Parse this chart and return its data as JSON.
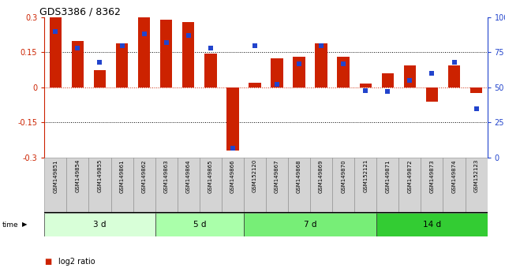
{
  "title": "GDS3386 / 8362",
  "samples": [
    "GSM149851",
    "GSM149854",
    "GSM149855",
    "GSM149861",
    "GSM149862",
    "GSM149863",
    "GSM149864",
    "GSM149865",
    "GSM149866",
    "GSM152120",
    "GSM149867",
    "GSM149868",
    "GSM149869",
    "GSM149870",
    "GSM152121",
    "GSM149871",
    "GSM149872",
    "GSM149873",
    "GSM149874",
    "GSM152123"
  ],
  "log2_ratio": [
    0.3,
    0.2,
    0.075,
    0.19,
    0.3,
    0.29,
    0.28,
    0.145,
    -0.27,
    0.02,
    0.125,
    0.13,
    0.19,
    0.13,
    0.018,
    0.06,
    0.095,
    -0.06,
    0.095,
    -0.025
  ],
  "percentile_rank": [
    90,
    78,
    68,
    80,
    88,
    82,
    87,
    78,
    7,
    80,
    52,
    67,
    80,
    67,
    48,
    47,
    55,
    60,
    68,
    35
  ],
  "groups": [
    {
      "label": "3 d",
      "start": 0,
      "end": 5,
      "color": "#d8ffd8"
    },
    {
      "label": "5 d",
      "start": 5,
      "end": 9,
      "color": "#aaffaa"
    },
    {
      "label": "7 d",
      "start": 9,
      "end": 15,
      "color": "#77ee77"
    },
    {
      "label": "14 d",
      "start": 15,
      "end": 20,
      "color": "#33cc33"
    }
  ],
  "bar_color": "#cc2200",
  "square_color": "#2244cc",
  "ylim_left": [
    -0.3,
    0.3
  ],
  "ylim_right": [
    0,
    100
  ],
  "yticks_left": [
    -0.3,
    -0.15,
    0.0,
    0.15,
    0.3
  ],
  "yticks_right": [
    0,
    25,
    50,
    75,
    100
  ],
  "bar_width": 0.55,
  "square_size": 4,
  "cell_facecolor": "#d4d4d4",
  "cell_edgecolor": "#888888",
  "left_tick_color": "#cc2200",
  "right_tick_color": "#2244cc"
}
